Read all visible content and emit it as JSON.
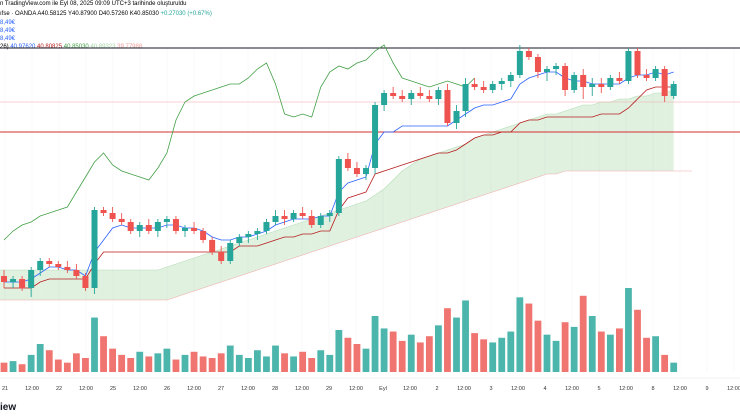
{
  "header": {
    "line1": "n TradingView.com ile Eyl 08, 2025 09:09 UTC+3 tarihinde oluşturuldu",
    "symbol": "ıfse · OANDA",
    "ohlc": [
      {
        "k": "A",
        "v": "40.58125"
      },
      {
        "k": "Y",
        "v": "40.87900"
      },
      {
        "k": "D",
        "v": "40.57260"
      },
      {
        "k": "K",
        "v": "40.85030"
      },
      {
        "k": "",
        "v": "+0.27030 (+0.67%)"
      }
    ],
    "pcts": [
      "8,49€",
      "8,49€",
      "8,49€"
    ],
    "ichimoku_label": "26)",
    "ichimoku_values": [
      {
        "v": "40.97620",
        "color": "#2962ff"
      },
      {
        "v": "40.80825",
        "color": "#b71c1c"
      },
      {
        "v": "40.85030",
        "color": "#43a047"
      },
      {
        "v": "40.89323",
        "color": "#a5d6a7"
      },
      {
        "v": "39.77988",
        "color": "#ef9a9a"
      }
    ]
  },
  "chart_data": {
    "type": "candlestick",
    "ylim": [
      40.0,
      40.9
    ],
    "horizontal_lines": [
      40.9,
      40.72,
      40.62
    ],
    "x_ticks": [
      "21",
      "12:00",
      "22",
      "12:00",
      "25",
      "12:00",
      "26",
      "12:00",
      "27",
      "12:00",
      "28",
      "12:00",
      "29",
      "12:00",
      "Eyl",
      "12:00",
      "2",
      "12:00",
      "3",
      "12:00",
      "4",
      "12:00",
      "5",
      "12:00",
      "8",
      "12:00",
      "9",
      "12:00"
    ],
    "candles": [
      [
        40.14,
        40.16,
        40.1,
        40.12
      ],
      [
        40.12,
        40.14,
        40.1,
        40.13
      ],
      [
        40.13,
        40.14,
        40.09,
        40.1
      ],
      [
        40.1,
        40.17,
        40.07,
        40.16
      ],
      [
        40.16,
        40.2,
        40.14,
        40.19
      ],
      [
        40.19,
        40.2,
        40.17,
        40.18
      ],
      [
        40.18,
        40.19,
        40.16,
        40.17
      ],
      [
        40.17,
        40.19,
        40.15,
        40.16
      ],
      [
        40.16,
        40.18,
        40.13,
        40.14
      ],
      [
        40.14,
        40.15,
        40.09,
        40.1
      ],
      [
        40.1,
        40.37,
        40.08,
        40.36
      ],
      [
        40.36,
        40.37,
        40.34,
        40.35
      ],
      [
        40.35,
        40.37,
        40.32,
        40.33
      ],
      [
        40.33,
        40.35,
        40.31,
        40.32
      ],
      [
        40.32,
        40.33,
        40.28,
        40.29
      ],
      [
        40.29,
        40.32,
        40.27,
        40.31
      ],
      [
        40.31,
        40.33,
        40.28,
        40.29
      ],
      [
        40.29,
        40.33,
        40.27,
        40.32
      ],
      [
        40.32,
        40.34,
        40.3,
        40.33
      ],
      [
        40.33,
        40.34,
        40.28,
        40.29
      ],
      [
        40.29,
        40.31,
        40.27,
        40.3
      ],
      [
        40.3,
        40.32,
        40.28,
        40.29
      ],
      [
        40.29,
        40.3,
        40.25,
        40.26
      ],
      [
        40.26,
        40.27,
        40.21,
        40.22
      ],
      [
        40.22,
        40.24,
        40.18,
        40.19
      ],
      [
        40.19,
        40.26,
        40.18,
        40.25
      ],
      [
        40.25,
        40.28,
        40.24,
        40.27
      ],
      [
        40.27,
        40.29,
        40.25,
        40.28
      ],
      [
        40.28,
        40.3,
        40.26,
        40.29
      ],
      [
        40.29,
        40.33,
        40.28,
        40.32
      ],
      [
        40.32,
        40.36,
        40.31,
        40.34
      ],
      [
        40.34,
        40.36,
        40.31,
        40.33
      ],
      [
        40.33,
        40.36,
        40.32,
        40.35
      ],
      [
        40.35,
        40.37,
        40.33,
        40.34
      ],
      [
        40.34,
        40.36,
        40.3,
        40.31
      ],
      [
        40.31,
        40.35,
        40.3,
        40.34
      ],
      [
        40.34,
        40.36,
        40.32,
        40.35
      ],
      [
        40.35,
        40.54,
        40.34,
        40.53
      ],
      [
        40.53,
        40.55,
        40.49,
        40.5
      ],
      [
        40.5,
        40.52,
        40.47,
        40.48
      ],
      [
        40.48,
        40.51,
        40.46,
        40.5
      ],
      [
        40.5,
        40.72,
        40.48,
        40.71
      ],
      [
        40.71,
        40.76,
        40.69,
        40.75
      ],
      [
        40.75,
        40.77,
        40.73,
        40.74
      ],
      [
        40.74,
        40.76,
        40.72,
        40.73
      ],
      [
        40.73,
        40.76,
        40.71,
        40.75
      ],
      [
        40.75,
        40.77,
        40.73,
        40.74
      ],
      [
        40.74,
        40.76,
        40.72,
        40.73
      ],
      [
        40.73,
        40.77,
        40.71,
        40.76
      ],
      [
        40.76,
        40.78,
        40.64,
        40.65
      ],
      [
        40.65,
        40.71,
        40.63,
        40.69
      ],
      [
        40.69,
        40.8,
        40.67,
        40.78
      ],
      [
        40.78,
        40.8,
        40.76,
        40.77
      ],
      [
        40.77,
        40.79,
        40.75,
        40.76
      ],
      [
        40.76,
        40.79,
        40.75,
        40.78
      ],
      [
        40.78,
        40.8,
        40.76,
        40.79
      ],
      [
        40.79,
        40.82,
        40.77,
        40.81
      ],
      [
        40.81,
        40.91,
        40.8,
        40.89
      ],
      [
        40.89,
        40.9,
        40.86,
        40.87
      ],
      [
        40.87,
        40.88,
        40.8,
        40.82
      ],
      [
        40.82,
        40.84,
        40.79,
        40.83
      ],
      [
        40.83,
        40.85,
        40.81,
        40.84
      ],
      [
        40.84,
        40.85,
        40.74,
        40.76
      ],
      [
        40.76,
        40.82,
        40.75,
        40.81
      ],
      [
        40.81,
        40.83,
        40.73,
        40.77
      ],
      [
        40.77,
        40.8,
        40.74,
        40.78
      ],
      [
        40.78,
        40.8,
        40.75,
        40.77
      ],
      [
        40.77,
        40.81,
        40.76,
        40.8
      ],
      [
        40.8,
        40.82,
        40.78,
        40.79
      ],
      [
        40.79,
        40.9,
        40.78,
        40.89
      ],
      [
        40.89,
        40.9,
        40.8,
        40.81
      ],
      [
        40.81,
        40.83,
        40.79,
        40.8
      ],
      [
        40.8,
        40.84,
        40.79,
        40.83
      ],
      [
        40.83,
        40.84,
        40.72,
        40.74
      ],
      [
        40.74,
        40.79,
        40.73,
        40.78
      ]
    ],
    "volume": [
      12,
      14,
      10,
      22,
      36,
      28,
      16,
      12,
      24,
      18,
      70,
      46,
      30,
      22,
      18,
      26,
      20,
      24,
      30,
      16,
      22,
      26,
      20,
      18,
      24,
      34,
      22,
      18,
      28,
      20,
      34,
      24,
      20,
      26,
      18,
      28,
      22,
      54,
      44,
      36,
      30,
      72,
      56,
      52,
      40,
      48,
      38,
      46,
      60,
      82,
      70,
      92,
      50,
      42,
      38,
      44,
      52,
      96,
      88,
      66,
      48,
      40,
      64,
      58,
      98,
      72,
      52,
      48,
      56,
      108,
      80,
      44,
      46,
      22,
      12
    ],
    "ichimoku": {
      "conversion": [
        40.12,
        40.12,
        40.12,
        40.13,
        40.15,
        40.17,
        40.17,
        40.16,
        40.16,
        40.14,
        40.22,
        40.26,
        40.3,
        40.31,
        40.3,
        40.3,
        40.3,
        40.3,
        40.31,
        40.31,
        40.3,
        40.3,
        40.29,
        40.27,
        40.26,
        40.26,
        40.27,
        40.27,
        40.28,
        40.29,
        40.31,
        40.32,
        40.33,
        40.33,
        40.33,
        40.34,
        40.34,
        40.42,
        40.45,
        40.46,
        40.47,
        40.58,
        40.62,
        40.62,
        40.64,
        40.64,
        40.64,
        40.64,
        40.64,
        40.64,
        40.66,
        40.68,
        40.7,
        40.71,
        40.71,
        40.72,
        40.73,
        40.78,
        40.8,
        40.81,
        40.82,
        40.82,
        40.8,
        40.79,
        40.79,
        40.78,
        40.78,
        40.78,
        40.78,
        40.8,
        40.81,
        40.81,
        40.82,
        40.81,
        40.82
      ],
      "base": [
        40.1,
        40.1,
        40.1,
        40.1,
        40.12,
        40.13,
        40.13,
        40.13,
        40.13,
        40.13,
        40.18,
        40.22,
        40.22,
        40.22,
        40.22,
        40.22,
        40.22,
        40.22,
        40.22,
        40.22,
        40.22,
        40.22,
        40.22,
        40.22,
        40.22,
        40.22,
        40.24,
        40.24,
        40.24,
        40.25,
        40.26,
        40.27,
        40.27,
        40.28,
        40.28,
        40.29,
        40.29,
        40.36,
        40.4,
        40.41,
        40.42,
        40.48,
        40.49,
        40.5,
        40.51,
        40.52,
        40.53,
        40.54,
        40.55,
        40.55,
        40.56,
        40.58,
        40.6,
        40.61,
        40.61,
        40.62,
        40.62,
        40.65,
        40.66,
        40.66,
        40.67,
        40.67,
        40.67,
        40.67,
        40.67,
        40.67,
        40.68,
        40.68,
        40.68,
        40.7,
        40.73,
        40.76,
        40.77,
        40.77,
        40.77
      ],
      "lagging": [
        40.26,
        40.29,
        40.31,
        40.32,
        40.34,
        40.35,
        40.36,
        40.37,
        40.42,
        40.47,
        40.52,
        40.55,
        40.51,
        40.49,
        40.48,
        40.47,
        40.46,
        40.5,
        40.55,
        40.66,
        40.72,
        40.74,
        40.75,
        40.76,
        40.77,
        40.78,
        40.78,
        40.8,
        40.83,
        40.85,
        40.78,
        40.68,
        40.67,
        40.68,
        40.67,
        40.77,
        40.82,
        40.84,
        40.83,
        40.85,
        40.86,
        40.89,
        40.91,
        40.85,
        40.8,
        40.79,
        40.78,
        40.77,
        40.78,
        40.79,
        40.78,
        40.77,
        40.8
      ],
      "lagging_offset": 0,
      "span_a": [
        40.2,
        40.2,
        40.2,
        40.2,
        40.2,
        40.2,
        40.19,
        40.18,
        40.17,
        40.16,
        40.16,
        40.16,
        40.16,
        40.16,
        40.16,
        40.16,
        40.16,
        40.16,
        40.16,
        40.16,
        40.16,
        40.16,
        40.16,
        40.16,
        40.16,
        40.16,
        40.16,
        40.16,
        40.16,
        40.16,
        40.16,
        40.16,
        40.16,
        40.16,
        40.16,
        40.16,
        40.16,
        40.16,
        40.16,
        40.16,
        40.16,
        40.16,
        40.16,
        40.16,
        40.17,
        40.18,
        40.19,
        40.2,
        40.21,
        40.22,
        40.23,
        40.24,
        40.25,
        40.26,
        40.27,
        40.28,
        40.29,
        40.3,
        40.31,
        40.32,
        40.33,
        40.34,
        40.35,
        40.36,
        40.37,
        40.38,
        40.39,
        40.41,
        40.43,
        40.46,
        40.49,
        40.51,
        40.53,
        40.54,
        40.55,
        40.56,
        40.57,
        40.58,
        40.6,
        40.61,
        40.62,
        40.63,
        40.64,
        40.65,
        40.66,
        40.67,
        40.68,
        40.68,
        40.69,
        40.7,
        40.71,
        40.71,
        40.72,
        40.72,
        40.73,
        40.73,
        40.74,
        40.74,
        40.75,
        40.75,
        40.76
      ],
      "span_b": [
        40.18,
        40.18,
        40.18,
        40.18,
        40.17,
        40.17,
        40.16,
        40.15,
        40.14,
        40.13,
        40.12,
        40.11,
        40.1,
        40.09,
        40.08,
        40.07,
        40.06,
        40.06,
        40.06,
        40.06,
        40.06,
        40.06,
        40.06,
        40.06,
        40.06,
        40.06,
        40.06,
        40.06,
        40.06,
        40.06,
        40.06,
        40.06,
        40.06,
        40.06,
        40.06,
        40.06,
        40.06,
        40.06,
        40.06,
        40.06,
        40.06,
        40.06,
        40.06,
        40.06,
        40.06,
        40.07,
        40.08,
        40.09,
        40.1,
        40.11,
        40.12,
        40.13,
        40.14,
        40.15,
        40.16,
        40.17,
        40.18,
        40.19,
        40.2,
        40.21,
        40.22,
        40.23,
        40.24,
        40.25,
        40.26,
        40.27,
        40.28,
        40.29,
        40.3,
        40.31,
        40.32,
        40.33,
        40.34,
        40.35,
        40.36,
        40.37,
        40.38,
        40.39,
        40.4,
        40.41,
        40.42,
        40.43,
        40.44,
        40.45,
        40.46,
        40.47,
        40.48,
        40.48,
        40.49,
        40.49,
        40.49,
        40.49,
        40.49,
        40.49,
        40.49,
        40.49,
        40.49,
        40.49,
        40.49,
        40.49,
        40.49,
        40.49,
        40.49
      ],
      "cloud_offset": -26
    },
    "colors": {
      "up": "#26a69a",
      "down": "#ef5350",
      "volume_up": "#4db6ac",
      "volume_down": "#f07470",
      "conversion": "#2962ff",
      "base": "#b71c1c",
      "lagging": "#43a047",
      "cloud_up": "#a5d6a7",
      "cloud_down": "#ef9a9a"
    }
  },
  "footer": {
    "brand": "iew"
  }
}
